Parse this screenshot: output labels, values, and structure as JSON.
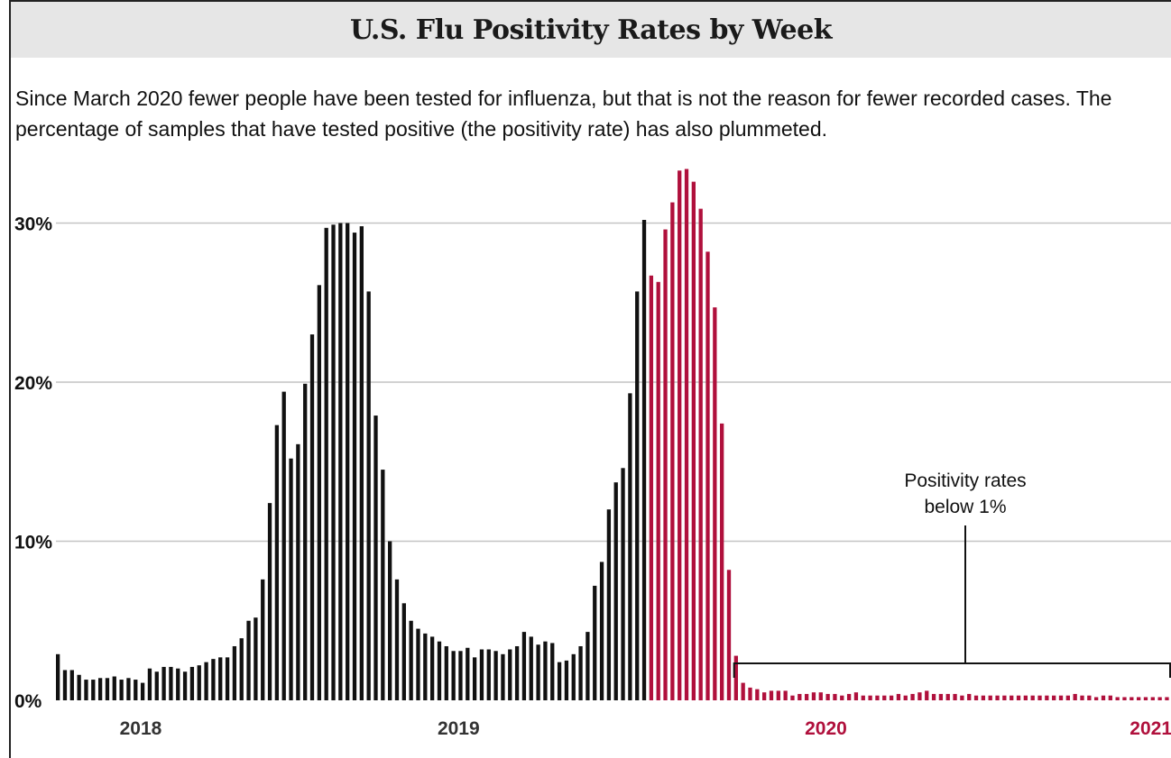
{
  "title": "U.S. Flu Positivity Rates by Week",
  "subtitle": "Since March 2020 fewer people have been tested for influenza, but that is not the reason for fewer recorded cases. The percentage of samples that have tested positive (the positivity rate) has also plummeted.",
  "colors": {
    "pre_pandemic": "#111111",
    "pandemic": "#b0103c",
    "grid": "#c4c4c4",
    "title_bg": "#e6e6e6"
  },
  "chart_data": {
    "type": "bar",
    "title": "U.S. Flu Positivity Rates by Week",
    "ylim": [
      0,
      35
    ],
    "y_ticks": [
      0,
      10,
      20,
      30
    ],
    "y_tick_labels": [
      "0%",
      "10%",
      "20%",
      "30%"
    ],
    "grid": true,
    "x_labels": [
      {
        "label": "2018",
        "week_index": 12,
        "series": "before"
      },
      {
        "label": "2019",
        "week_index": 57,
        "series": "before"
      },
      {
        "label": "2020",
        "week_index": 109,
        "series": "after"
      },
      {
        "label": "2021",
        "week_index": 155,
        "series": "after"
      }
    ],
    "series": [
      {
        "key": "before",
        "values": [
          2.9,
          1.9,
          1.9,
          1.6,
          1.3,
          1.3,
          1.4,
          1.4,
          1.5,
          1.3,
          1.4,
          1.3,
          1.1,
          2.0,
          1.8,
          2.1,
          2.1,
          2.0,
          1.8,
          2.1,
          2.2,
          2.4,
          2.6,
          2.7,
          2.7,
          3.4,
          3.9,
          5.0,
          5.2,
          7.6,
          12.4,
          17.3,
          19.4,
          15.2,
          16.1,
          19.9,
          23.0,
          26.1,
          29.7,
          29.9,
          30.0,
          30.0,
          29.4,
          29.8,
          25.7,
          17.9,
          14.5,
          10.0,
          7.6,
          6.1,
          5.0,
          4.5,
          4.2,
          4.0,
          3.7,
          3.4,
          3.1,
          3.1,
          3.3,
          2.7,
          3.2,
          3.2,
          3.1,
          2.9,
          3.2,
          3.4,
          4.3,
          4.0,
          3.5,
          3.7,
          3.6,
          2.4,
          2.5,
          2.9,
          3.4,
          4.3,
          7.2,
          8.7,
          12.0,
          13.7,
          14.6,
          19.3,
          25.7,
          30.2
        ]
      },
      {
        "key": "after",
        "values": [
          26.7,
          26.3,
          29.6,
          31.3,
          33.3,
          33.4,
          32.6,
          30.9,
          28.2,
          24.7,
          17.4,
          8.2,
          2.8,
          1.1,
          0.8,
          0.7,
          0.5,
          0.6,
          0.6,
          0.6,
          0.3,
          0.4,
          0.4,
          0.5,
          0.5,
          0.4,
          0.4,
          0.3,
          0.4,
          0.5,
          0.3,
          0.3,
          0.3,
          0.3,
          0.3,
          0.4,
          0.3,
          0.4,
          0.5,
          0.6,
          0.4,
          0.4,
          0.4,
          0.4,
          0.3,
          0.4,
          0.3,
          0.3,
          0.3,
          0.3,
          0.3,
          0.3,
          0.3,
          0.3,
          0.3,
          0.3,
          0.3,
          0.3,
          0.3,
          0.3,
          0.4,
          0.3,
          0.3,
          0.2,
          0.3,
          0.3,
          0.2,
          0.2,
          0.2,
          0.2,
          0.2,
          0.2,
          0.2,
          0.2,
          0.2,
          0.2,
          0.2,
          0.2,
          0.2,
          0.2,
          0.2,
          0.2,
          0.2
        ]
      }
    ],
    "annotation": {
      "lines": [
        "Positivity rates",
        "below 1%"
      ],
      "bracket_from_week": 96,
      "bracket_to_week": 166
    }
  }
}
